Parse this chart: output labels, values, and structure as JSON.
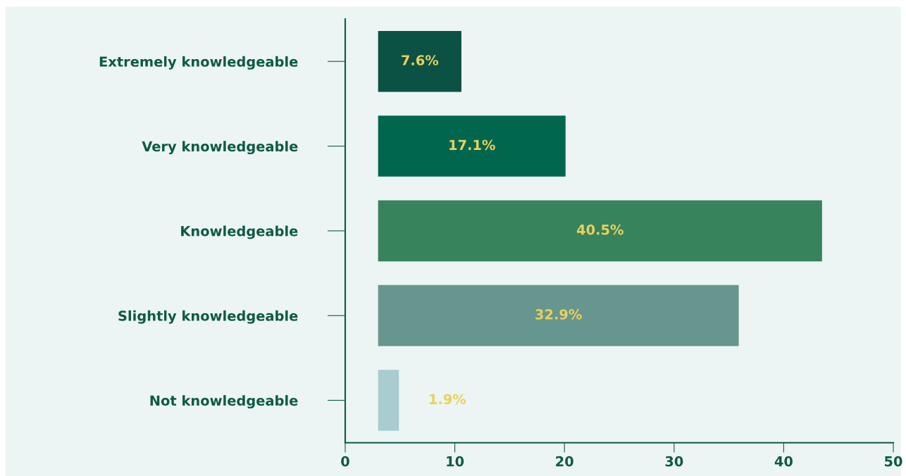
{
  "chart_data": {
    "type": "bar",
    "orientation": "horizontal",
    "categories": [
      "Extremely knowledgeable",
      "Very knowledgeable",
      "Knowledgeable",
      "Slightly knowledgeable",
      "Not knowledgeable"
    ],
    "values": [
      7.6,
      17.1,
      40.5,
      32.9,
      1.9
    ],
    "base": [
      3,
      3,
      3,
      3,
      3
    ],
    "colors": [
      "#0b5244",
      "#00664e",
      "#36835c",
      "#67968e",
      "#a8cccf"
    ],
    "value_labels": [
      "7.6%",
      "17.1%",
      "40.5%",
      "32.9%",
      "1.9%"
    ],
    "xlim": [
      0,
      50
    ],
    "xticks": [
      0,
      10,
      20,
      30,
      40,
      50
    ],
    "grid": false,
    "legend": false
  }
}
